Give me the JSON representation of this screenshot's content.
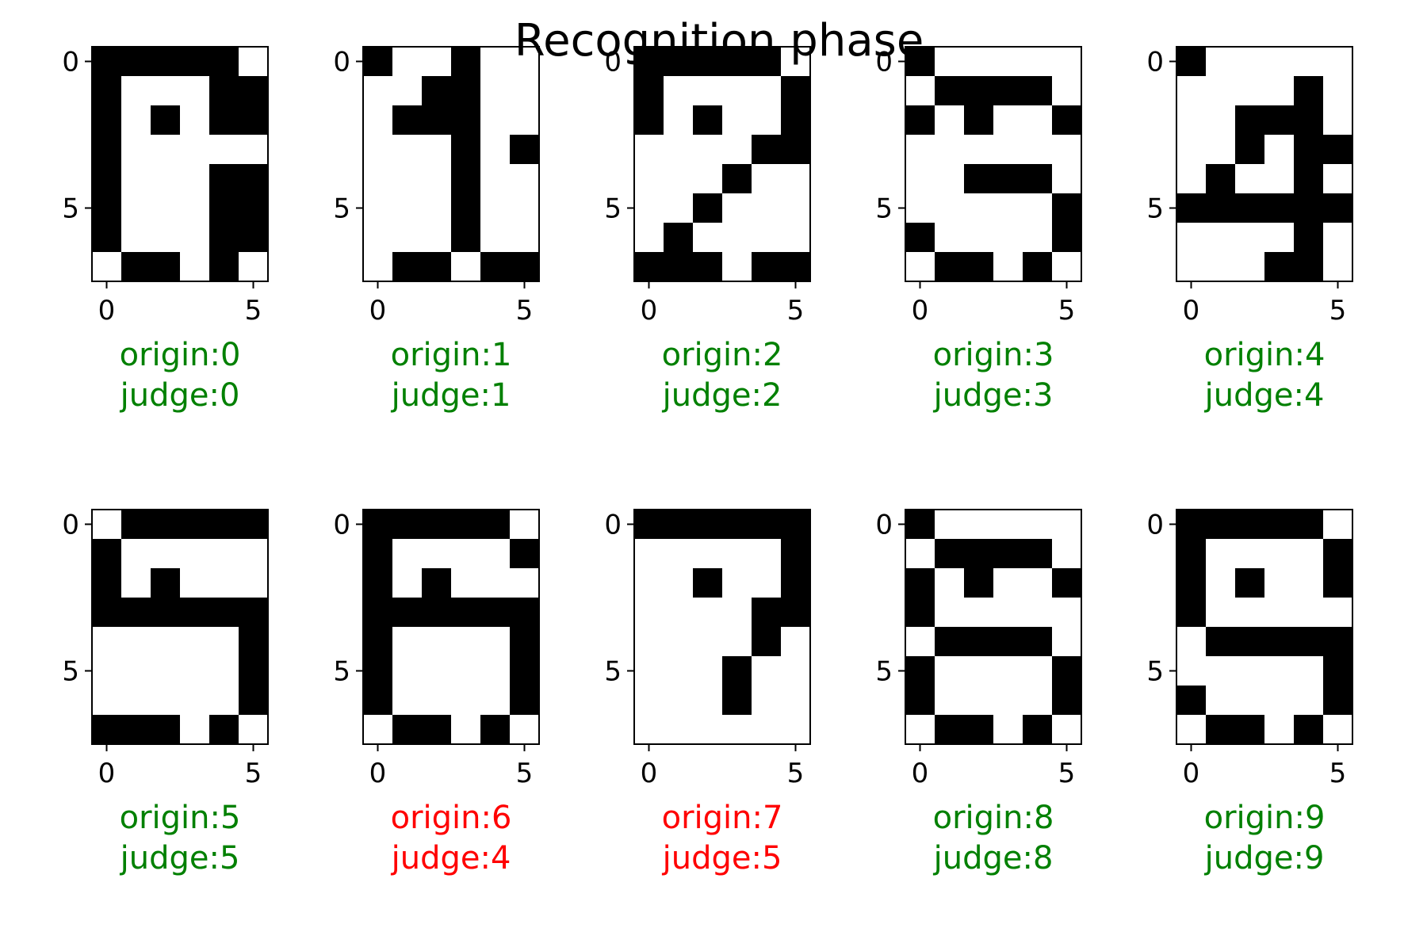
{
  "title": "Recognition phase",
  "colors": {
    "correct": "#008000",
    "incorrect": "#ff0000",
    "on": "#000000",
    "off": "#ffffff"
  },
  "chart_data": {
    "type": "heatmap",
    "title": "Recognition phase",
    "grid": false,
    "rows": 8,
    "cols": 6,
    "x_ticks": [
      0,
      5
    ],
    "y_ticks": [
      0,
      5
    ],
    "colormap": "binary (1 = black, 0 = white)",
    "panels": [
      {
        "origin_label": "origin:0",
        "judge_label": "judge:0",
        "correct": true,
        "matrix": [
          [
            1,
            1,
            1,
            1,
            1,
            0
          ],
          [
            1,
            0,
            0,
            0,
            1,
            1
          ],
          [
            1,
            0,
            1,
            0,
            1,
            1
          ],
          [
            1,
            0,
            0,
            0,
            0,
            0
          ],
          [
            1,
            0,
            0,
            0,
            1,
            1
          ],
          [
            1,
            0,
            0,
            0,
            1,
            1
          ],
          [
            1,
            0,
            0,
            0,
            1,
            1
          ],
          [
            0,
            1,
            1,
            0,
            1,
            0
          ]
        ]
      },
      {
        "origin_label": "origin:1",
        "judge_label": "judge:1",
        "correct": true,
        "matrix": [
          [
            1,
            0,
            0,
            1,
            0,
            0
          ],
          [
            0,
            0,
            1,
            1,
            0,
            0
          ],
          [
            0,
            1,
            1,
            1,
            0,
            0
          ],
          [
            0,
            0,
            0,
            1,
            0,
            1
          ],
          [
            0,
            0,
            0,
            1,
            0,
            0
          ],
          [
            0,
            0,
            0,
            1,
            0,
            0
          ],
          [
            0,
            0,
            0,
            1,
            0,
            0
          ],
          [
            0,
            1,
            1,
            0,
            1,
            1
          ]
        ]
      },
      {
        "origin_label": "origin:2",
        "judge_label": "judge:2",
        "correct": true,
        "matrix": [
          [
            1,
            1,
            1,
            1,
            1,
            0
          ],
          [
            1,
            0,
            0,
            0,
            0,
            1
          ],
          [
            1,
            0,
            1,
            0,
            0,
            1
          ],
          [
            0,
            0,
            0,
            0,
            1,
            1
          ],
          [
            0,
            0,
            0,
            1,
            0,
            0
          ],
          [
            0,
            0,
            1,
            0,
            0,
            0
          ],
          [
            0,
            1,
            0,
            0,
            0,
            0
          ],
          [
            1,
            1,
            1,
            0,
            1,
            1
          ]
        ]
      },
      {
        "origin_label": "origin:3",
        "judge_label": "judge:3",
        "correct": true,
        "matrix": [
          [
            1,
            0,
            0,
            0,
            0,
            0
          ],
          [
            0,
            1,
            1,
            1,
            1,
            0
          ],
          [
            1,
            0,
            1,
            0,
            0,
            1
          ],
          [
            0,
            0,
            0,
            0,
            0,
            0
          ],
          [
            0,
            0,
            1,
            1,
            1,
            0
          ],
          [
            0,
            0,
            0,
            0,
            0,
            1
          ],
          [
            1,
            0,
            0,
            0,
            0,
            1
          ],
          [
            0,
            1,
            1,
            0,
            1,
            0
          ]
        ]
      },
      {
        "origin_label": "origin:4",
        "judge_label": "judge:4",
        "correct": true,
        "matrix": [
          [
            1,
            0,
            0,
            0,
            0,
            0
          ],
          [
            0,
            0,
            0,
            0,
            1,
            0
          ],
          [
            0,
            0,
            1,
            1,
            1,
            0
          ],
          [
            0,
            0,
            1,
            0,
            1,
            1
          ],
          [
            0,
            1,
            0,
            0,
            1,
            0
          ],
          [
            1,
            1,
            1,
            1,
            1,
            1
          ],
          [
            0,
            0,
            0,
            0,
            1,
            0
          ],
          [
            0,
            0,
            0,
            1,
            1,
            0
          ]
        ]
      },
      {
        "origin_label": "origin:5",
        "judge_label": "judge:5",
        "correct": true,
        "matrix": [
          [
            0,
            1,
            1,
            1,
            1,
            1
          ],
          [
            1,
            0,
            0,
            0,
            0,
            0
          ],
          [
            1,
            0,
            1,
            0,
            0,
            0
          ],
          [
            1,
            1,
            1,
            1,
            1,
            1
          ],
          [
            0,
            0,
            0,
            0,
            0,
            1
          ],
          [
            0,
            0,
            0,
            0,
            0,
            1
          ],
          [
            0,
            0,
            0,
            0,
            0,
            1
          ],
          [
            1,
            1,
            1,
            0,
            1,
            0
          ]
        ]
      },
      {
        "origin_label": "origin:6",
        "judge_label": "judge:4",
        "correct": false,
        "matrix": [
          [
            1,
            1,
            1,
            1,
            1,
            0
          ],
          [
            1,
            0,
            0,
            0,
            0,
            1
          ],
          [
            1,
            0,
            1,
            0,
            0,
            0
          ],
          [
            1,
            1,
            1,
            1,
            1,
            1
          ],
          [
            1,
            0,
            0,
            0,
            0,
            1
          ],
          [
            1,
            0,
            0,
            0,
            0,
            1
          ],
          [
            1,
            0,
            0,
            0,
            0,
            1
          ],
          [
            0,
            1,
            1,
            0,
            1,
            0
          ]
        ]
      },
      {
        "origin_label": "origin:7",
        "judge_label": "judge:5",
        "correct": false,
        "matrix": [
          [
            1,
            1,
            1,
            1,
            1,
            1
          ],
          [
            0,
            0,
            0,
            0,
            0,
            1
          ],
          [
            0,
            0,
            1,
            0,
            0,
            1
          ],
          [
            0,
            0,
            0,
            0,
            1,
            1
          ],
          [
            0,
            0,
            0,
            0,
            1,
            0
          ],
          [
            0,
            0,
            0,
            1,
            0,
            0
          ],
          [
            0,
            0,
            0,
            1,
            0,
            0
          ],
          [
            0,
            0,
            0,
            0,
            0,
            0
          ]
        ]
      },
      {
        "origin_label": "origin:8",
        "judge_label": "judge:8",
        "correct": true,
        "matrix": [
          [
            1,
            0,
            0,
            0,
            0,
            0
          ],
          [
            0,
            1,
            1,
            1,
            1,
            0
          ],
          [
            1,
            0,
            1,
            0,
            0,
            1
          ],
          [
            1,
            0,
            0,
            0,
            0,
            0
          ],
          [
            0,
            1,
            1,
            1,
            1,
            0
          ],
          [
            1,
            0,
            0,
            0,
            0,
            1
          ],
          [
            1,
            0,
            0,
            0,
            0,
            1
          ],
          [
            0,
            1,
            1,
            0,
            1,
            0
          ]
        ]
      },
      {
        "origin_label": "origin:9",
        "judge_label": "judge:9",
        "correct": true,
        "matrix": [
          [
            1,
            1,
            1,
            1,
            1,
            0
          ],
          [
            1,
            0,
            0,
            0,
            0,
            1
          ],
          [
            1,
            0,
            1,
            0,
            0,
            1
          ],
          [
            1,
            0,
            0,
            0,
            0,
            0
          ],
          [
            0,
            1,
            1,
            1,
            1,
            1
          ],
          [
            0,
            0,
            0,
            0,
            0,
            1
          ],
          [
            1,
            0,
            0,
            0,
            0,
            1
          ],
          [
            0,
            1,
            1,
            0,
            1,
            0
          ]
        ]
      }
    ]
  }
}
